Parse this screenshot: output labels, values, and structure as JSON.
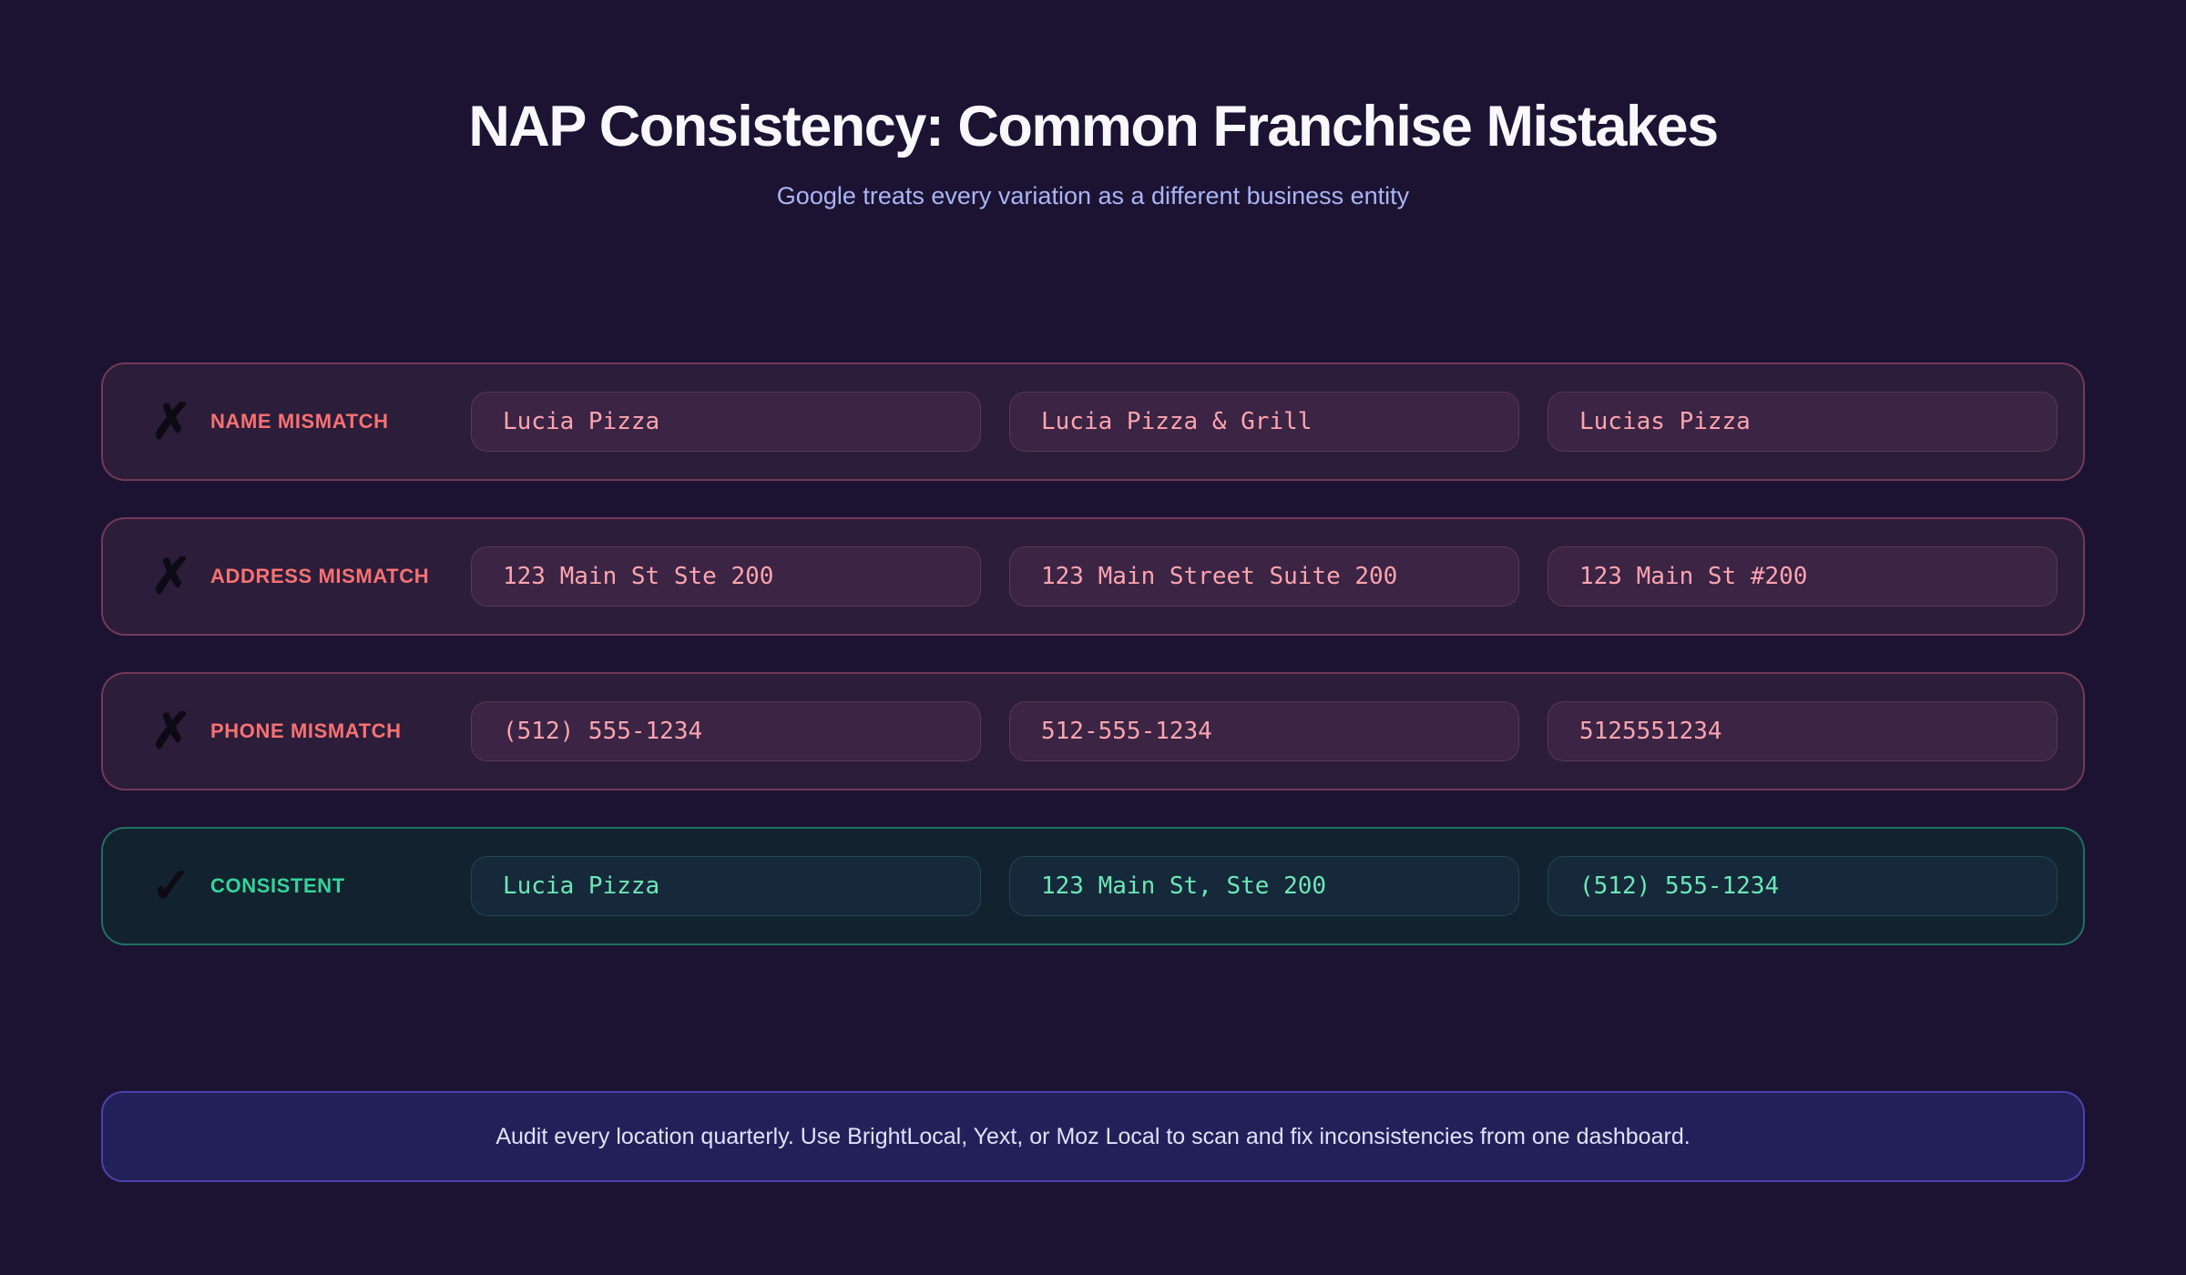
{
  "header": {
    "title": "NAP Consistency: Common Franchise Mistakes",
    "subtitle": "Google treats every variation as a different business entity"
  },
  "rows": [
    {
      "status": "mismatch",
      "icon": "✗",
      "label": "NAME MISMATCH",
      "values": [
        "Lucia Pizza",
        "Lucia Pizza & Grill",
        "Lucias Pizza"
      ]
    },
    {
      "status": "mismatch",
      "icon": "✗",
      "label": "ADDRESS MISMATCH",
      "values": [
        "123 Main St Ste 200",
        "123 Main Street Suite 200",
        "123 Main St #200"
      ]
    },
    {
      "status": "mismatch",
      "icon": "✗",
      "label": "PHONE MISMATCH",
      "values": [
        "(512) 555-1234",
        "512-555-1234",
        "5125551234"
      ]
    },
    {
      "status": "consistent",
      "icon": "✓",
      "label": "CONSISTENT",
      "values": [
        "Lucia Pizza",
        "123 Main St, Ste 200",
        "(512) 555-1234"
      ]
    }
  ],
  "footer": {
    "tip": "Audit every location quarterly. Use BrightLocal, Yext, or Moz Local to scan and fix inconsistencies from one dashboard."
  },
  "colors": {
    "background": "#1c1333",
    "title": "#f8f8fc",
    "subtitle": "#a9b5f4",
    "mismatch_label": "#f87171",
    "mismatch_chip_text": "#fda4af",
    "mismatch_row_bg": "#2c1d3a",
    "consistent_label": "#34d399",
    "consistent_chip_text": "#6ee7b7",
    "consistent_row_bg": "#12222f",
    "icon": "#0d0a14",
    "tip_bg": "#232059",
    "tip_border": "#4a42a8",
    "tip_text": "#dce3fc"
  }
}
